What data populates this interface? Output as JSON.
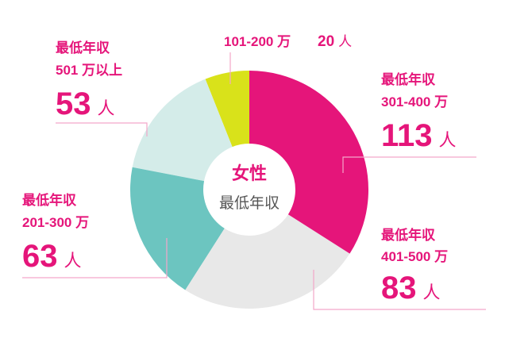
{
  "chart_data": {
    "type": "donut",
    "center_title": "女性",
    "center_subtitle": "最低年収",
    "label_prefix": "最低年収",
    "count_unit": "人",
    "categories": [
      "301-400 万",
      "401-500 万",
      "201-300 万",
      "501 万以上",
      "101-200 万"
    ],
    "values": [
      113,
      83,
      63,
      53,
      20
    ],
    "colors": [
      "#e5157a",
      "#e8e8e8",
      "#6cc5c0",
      "#d4ece9",
      "#d9e21a"
    ]
  }
}
